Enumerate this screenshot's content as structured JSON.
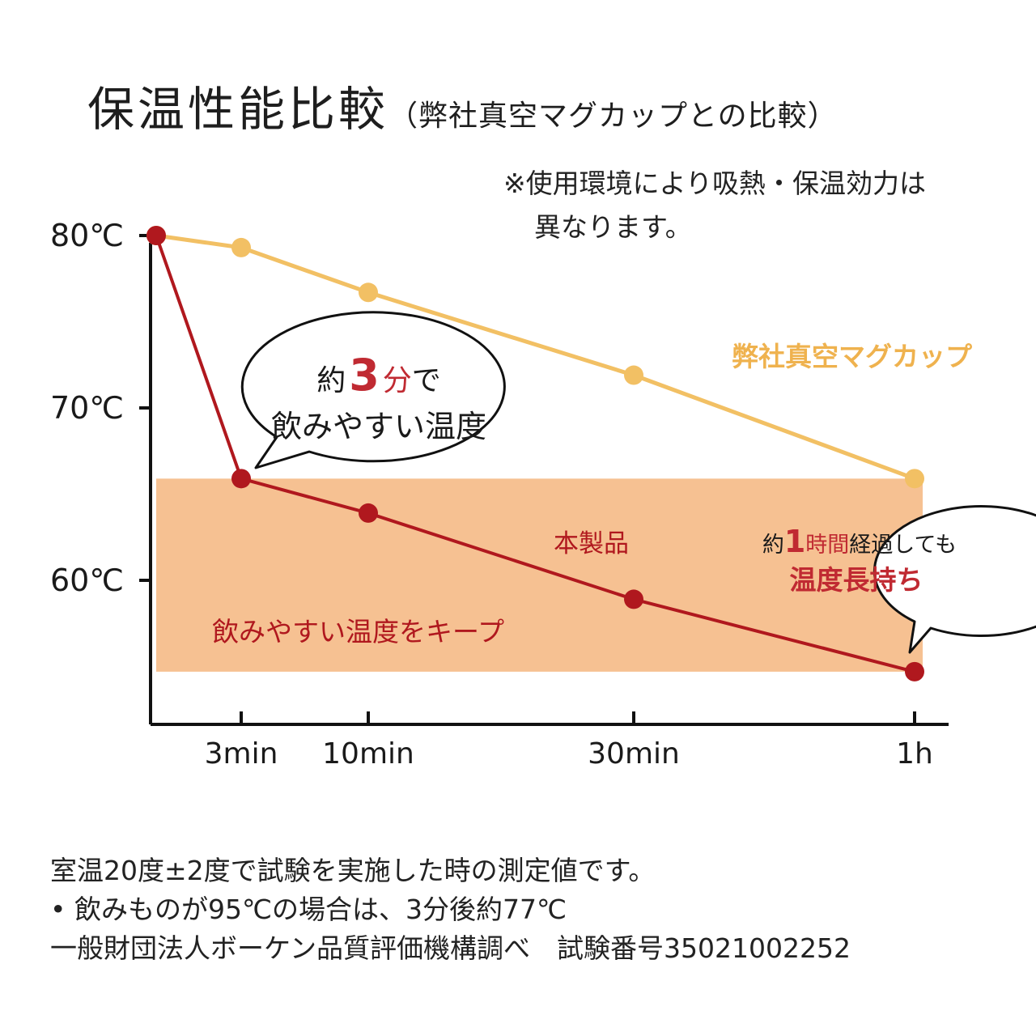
{
  "title": {
    "main": "保温性能比較",
    "sub": "（弊社真空マグカップとの比較）"
  },
  "note": [
    "※使用環境により吸熱・保温効力は",
    "異なります。"
  ],
  "colors": {
    "product_line": "#b0181e",
    "mug_line": "#f2c064",
    "mug_label": "#efb24e",
    "band_fill": "#f6c192",
    "axis": "#111111",
    "accent_text": "#c02a32"
  },
  "chart_data": {
    "type": "line",
    "x": [
      "0",
      "3min",
      "10min",
      "30min",
      "1h"
    ],
    "x_tick_labels": [
      "3min",
      "10min",
      "30min",
      "1h"
    ],
    "y_tick_labels": [
      "80℃",
      "70℃",
      "60℃"
    ],
    "ylim": [
      49,
      82
    ],
    "grid": false,
    "series": [
      {
        "name": "弊社真空マグカップ",
        "values": [
          80,
          79.3,
          76.7,
          71.9,
          65.9
        ]
      },
      {
        "name": "本製品",
        "values": [
          80,
          65.9,
          63.9,
          58.9,
          54.7
        ]
      }
    ],
    "band": {
      "from": 54.7,
      "to": 65.9,
      "label": "飲みやすい温度をキープ"
    },
    "callouts": [
      {
        "lines": [
          [
            "約",
            "3",
            "分で"
          ],
          [
            "飲みやすい温度"
          ]
        ]
      },
      {
        "lines": [
          [
            "約",
            "1",
            "時間",
            "経過しても"
          ],
          [
            "温度長持ち"
          ]
        ]
      }
    ]
  },
  "footer": {
    "line1": "室温20度±2度で試験を実施した時の測定値です。",
    "bullet": "•",
    "line2": "飲みものが95℃の場合は、3分後約77℃",
    "line3": "一般財団法人ボーケン品質評価機構調べ　試験番号35021002252"
  }
}
